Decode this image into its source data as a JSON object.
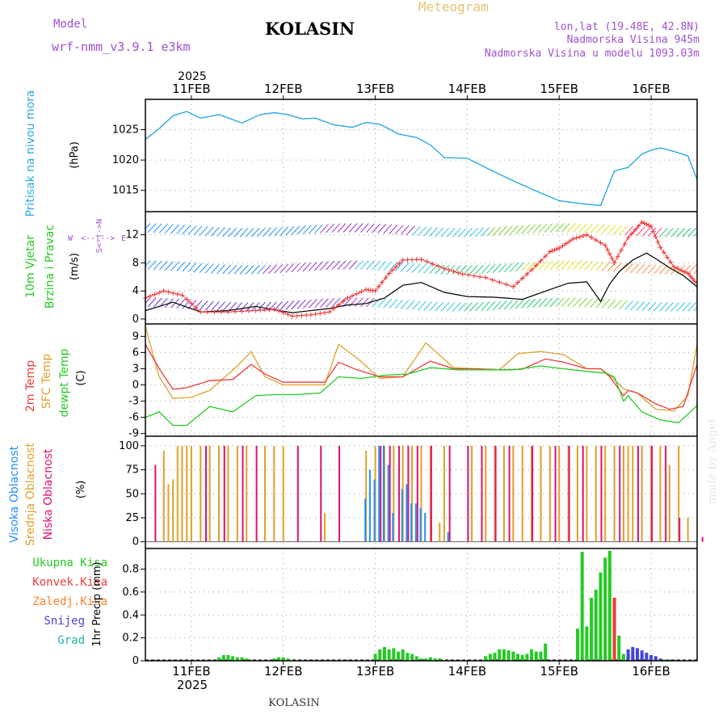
{
  "header": {
    "model_label": "Model",
    "model_name": "wrf-nmm_v3.9.1 e3km",
    "station": "KOLASIN",
    "meteogram_label": "Meteogram",
    "coords": "lon,lat (19.48E, 42.8N)",
    "elevation": "Nadmorska Visina 945m",
    "model_elevation": "Nadmorska Visina u modelu 1093.03m"
  },
  "footer": {
    "station": "KOLASIN",
    "watermark": "made by Angel"
  },
  "colors": {
    "pressure": "#29a9e0",
    "t2m": "#ee3b3b",
    "sfc": "#e0a02a",
    "dewpt": "#22cc22",
    "high_cloud": "#1e90ff",
    "mid_cloud": "#e0a02a",
    "low_cloud": "#e0106f",
    "precip_total": "#22cc22",
    "precip_conv": "#ee3b3b",
    "precip_frz": "#ff7f24",
    "snow": "#4444dd",
    "hail": "#20b2aa",
    "title_purple": "#a050d0",
    "meteogram_orange": "#e8c070"
  },
  "time_axis": {
    "year": "2025",
    "tick_labels": [
      "11FEB",
      "12FEB",
      "13FEB",
      "14FEB",
      "15FEB",
      "16FEB"
    ],
    "range_days": [
      -0.5,
      5.5
    ]
  },
  "chart_data": [
    {
      "type": "line",
      "panel": "pressure",
      "ylabel_outer": "Pritisak na nivou mora",
      "ylabel_unit": "(hPa)",
      "yticks": [
        1015,
        1020,
        1025
      ],
      "ylim": [
        1011.5,
        1030
      ],
      "series": [
        {
          "name": "Pritisak na nivou mora",
          "x": [
            -0.5,
            -0.35,
            -0.2,
            -0.05,
            0.1,
            0.3,
            0.55,
            0.75,
            0.9,
            1.05,
            1.2,
            1.35,
            1.55,
            1.75,
            1.9,
            2.05,
            2.25,
            2.45,
            2.6,
            2.75,
            3.0,
            3.25,
            3.5,
            3.75,
            4.0,
            4.25,
            4.45,
            4.6,
            4.75,
            4.9,
            5.0,
            5.1,
            5.25,
            5.4,
            5.5
          ],
          "values": [
            1023.4,
            1025.2,
            1027.3,
            1028.0,
            1026.9,
            1027.5,
            1026.1,
            1027.5,
            1027.8,
            1027.5,
            1026.8,
            1026.9,
            1025.8,
            1025.4,
            1026.2,
            1025.9,
            1024.3,
            1023.7,
            1022.5,
            1020.4,
            1020.3,
            1018.4,
            1016.6,
            1014.9,
            1013.3,
            1012.8,
            1012.5,
            1018.2,
            1018.8,
            1021.0,
            1021.6,
            1022.0,
            1021.4,
            1020.7,
            1016.8
          ]
        }
      ]
    },
    {
      "type": "line",
      "panel": "wind",
      "ylabel_outer_1": "10m Vjetar",
      "ylabel_outer_2": "Brzina i Pravac",
      "ylabel_unit": "(m/s)",
      "direction_key": [
        "W",
        "<--|-->",
        "E",
        "S<-|->N"
      ],
      "yticks": [
        0,
        4,
        8,
        12
      ],
      "ylim": [
        -0.7,
        15.3
      ],
      "series": [
        {
          "name": "gust",
          "x": [
            -0.5,
            -0.3,
            -0.1,
            0.1,
            0.4,
            0.7,
            0.9,
            1.1,
            1.3,
            1.5,
            1.7,
            1.9,
            2.0,
            2.15,
            2.3,
            2.5,
            2.75,
            2.95,
            3.2,
            3.5,
            3.7,
            3.9,
            4.0,
            4.15,
            4.3,
            4.5,
            4.6,
            4.75,
            4.9,
            5.0,
            5.1,
            5.25,
            5.4,
            5.5
          ],
          "values": [
            3.0,
            4.0,
            3.4,
            1.0,
            1.0,
            1.2,
            1.4,
            0.4,
            0.6,
            1.0,
            3.0,
            4.2,
            4.0,
            6.5,
            8.4,
            8.5,
            7.2,
            6.4,
            5.9,
            4.6,
            7.0,
            9.6,
            10.1,
            11.4,
            12.0,
            10.5,
            8.0,
            11.6,
            13.8,
            13.2,
            10.2,
            7.4,
            6.5,
            5.0
          ]
        },
        {
          "name": "mean",
          "x": [
            -0.5,
            -0.2,
            0.1,
            0.4,
            0.7,
            0.9,
            1.1,
            1.3,
            1.5,
            1.7,
            1.9,
            2.1,
            2.3,
            2.5,
            2.75,
            3.0,
            3.3,
            3.6,
            3.9,
            4.1,
            4.3,
            4.45,
            4.55,
            4.65,
            4.8,
            4.95,
            5.05,
            5.2,
            5.35,
            5.5
          ],
          "values": [
            1.2,
            2.4,
            1.0,
            1.2,
            1.8,
            1.3,
            0.9,
            1.2,
            1.5,
            2.0,
            2.2,
            3.0,
            4.8,
            5.2,
            3.8,
            3.2,
            3.1,
            2.8,
            4.2,
            5.1,
            5.3,
            2.5,
            5.0,
            6.7,
            8.4,
            9.4,
            8.6,
            7.3,
            6.2,
            4.6
          ]
        }
      ]
    },
    {
      "type": "line",
      "panel": "temperature",
      "ylabel_1": "2m Temp",
      "ylabel_2": "SFC Temp",
      "ylabel_3": "dewpt Temp",
      "ylabel_unit": "(C)",
      "yticks": [
        -9,
        -6,
        -3,
        0,
        3,
        6,
        9
      ],
      "ylim": [
        -9.5,
        11.3
      ],
      "series": [
        {
          "name": "2m Temp",
          "x": [
            -0.5,
            -0.35,
            -0.2,
            -0.05,
            0.2,
            0.45,
            0.65,
            0.8,
            1.0,
            1.25,
            1.45,
            1.6,
            1.8,
            2.05,
            2.3,
            2.6,
            2.85,
            3.1,
            3.35,
            3.6,
            3.85,
            4.05,
            4.3,
            4.45,
            4.55,
            4.7,
            4.75,
            4.85,
            5.05,
            5.2,
            5.35,
            5.5
          ],
          "values": [
            7.5,
            3.0,
            -0.8,
            -0.5,
            0.8,
            1.0,
            3.8,
            2.0,
            0.5,
            0.5,
            0.5,
            4.2,
            2.8,
            1.5,
            1.5,
            4.4,
            3.0,
            3.0,
            2.8,
            2.9,
            4.8,
            4.2,
            3.0,
            3.0,
            1.5,
            -2.0,
            -1.0,
            -1.5,
            -3.5,
            -4.5,
            -4.0,
            3.8
          ]
        },
        {
          "name": "SFC Temp",
          "x": [
            -0.5,
            -0.35,
            -0.2,
            0.0,
            0.2,
            0.5,
            0.65,
            0.8,
            1.0,
            1.25,
            1.45,
            1.6,
            1.8,
            2.05,
            2.3,
            2.55,
            2.85,
            3.1,
            3.35,
            3.55,
            3.8,
            4.05,
            4.3,
            4.45,
            4.55,
            4.7,
            4.75,
            4.85,
            5.05,
            5.25,
            5.4,
            5.5
          ],
          "values": [
            10.8,
            1.5,
            -2.5,
            -2.3,
            -1.0,
            3.5,
            6.2,
            1.5,
            0.0,
            0.0,
            0.0,
            7.5,
            5.0,
            1.2,
            1.5,
            7.8,
            3.2,
            3.0,
            2.8,
            5.8,
            6.2,
            5.6,
            3.0,
            3.0,
            1.8,
            -0.7,
            -1.0,
            -1.5,
            -4.5,
            -4.8,
            -2.0,
            7.6
          ]
        },
        {
          "name": "dewpt Temp",
          "x": [
            -0.5,
            -0.35,
            -0.2,
            -0.05,
            0.2,
            0.45,
            0.7,
            0.9,
            1.15,
            1.4,
            1.6,
            1.85,
            2.1,
            2.35,
            2.6,
            2.9,
            3.2,
            3.5,
            3.8,
            4.05,
            4.3,
            4.5,
            4.6,
            4.7,
            4.75,
            4.9,
            5.1,
            5.3,
            5.5
          ],
          "values": [
            -6.0,
            -5.0,
            -7.5,
            -7.5,
            -4.0,
            -5.0,
            -2.0,
            -1.8,
            -1.8,
            -1.5,
            1.5,
            1.2,
            1.8,
            2.0,
            3.2,
            2.8,
            2.8,
            2.8,
            3.5,
            3.0,
            2.5,
            2.2,
            1.5,
            -3.0,
            -2.0,
            -5.0,
            -6.5,
            -7.0,
            -3.8
          ]
        }
      ]
    },
    {
      "type": "bar",
      "panel": "cloud",
      "ylabel_1": "Visoka Oblacnost",
      "ylabel_2": "Srednja Oblacnost",
      "ylabel_3": "Niska Oblacnost",
      "ylabel_unit": "(%)",
      "yticks": [
        0,
        25,
        50,
        75,
        100
      ],
      "ylim": [
        -7,
        110
      ],
      "series": [
        {
          "name": "Visoka Oblacnost",
          "x": [
            1.9,
            1.95,
            2.0,
            2.05,
            2.1,
            2.15,
            2.2,
            2.3,
            2.35,
            2.4,
            2.45,
            2.5,
            2.55,
            2.8
          ],
          "values": [
            45,
            75,
            65,
            100,
            100,
            80,
            30,
            55,
            60,
            40,
            40,
            35,
            30,
            10
          ]
        },
        {
          "name": "Srednja Oblacnost",
          "x": [
            -0.3,
            -0.25,
            -0.2,
            -0.15,
            -0.1,
            -0.05,
            0.0,
            0.1,
            0.2,
            0.3,
            0.4,
            0.5,
            0.6,
            0.8,
            0.9,
            1.0,
            1.45,
            1.9,
            2.0,
            2.1,
            2.2,
            2.3,
            2.4,
            2.5,
            2.6,
            2.7,
            2.75,
            3.05,
            3.2,
            3.3,
            3.4,
            3.5,
            3.6,
            3.7,
            3.8,
            3.9,
            4.0,
            4.1,
            4.2,
            4.3,
            4.4,
            4.5,
            4.6,
            4.7,
            4.75,
            4.8,
            4.9,
            5.0,
            5.1,
            5.2,
            5.3,
            5.4
          ],
          "values": [
            95,
            60,
            65,
            100,
            100,
            100,
            100,
            100,
            100,
            100,
            100,
            100,
            100,
            100,
            100,
            100,
            30,
            95,
            100,
            100,
            100,
            100,
            100,
            100,
            100,
            20,
            100,
            100,
            100,
            100,
            100,
            100,
            100,
            100,
            100,
            100,
            100,
            100,
            100,
            100,
            100,
            100,
            100,
            100,
            100,
            100,
            100,
            100,
            100,
            80,
            100,
            25
          ]
        },
        {
          "name": "Niska Oblacnost",
          "x": [
            -0.4,
            0.15,
            0.35,
            0.55,
            0.7,
            1.15,
            1.4,
            1.6,
            2.05,
            2.15,
            2.25,
            2.35,
            2.45,
            2.6,
            2.8,
            3.0,
            3.15,
            3.3,
            3.45,
            3.7,
            3.95,
            4.1,
            4.25,
            4.45,
            4.65,
            4.85,
            5.0,
            5.15,
            5.3,
            5.55
          ],
          "values": [
            80,
            100,
            100,
            100,
            100,
            100,
            100,
            100,
            100,
            100,
            100,
            100,
            100,
            100,
            100,
            100,
            100,
            100,
            100,
            100,
            100,
            100,
            100,
            100,
            100,
            100,
            100,
            100,
            25,
            5
          ]
        }
      ]
    },
    {
      "type": "bar",
      "panel": "precip",
      "ylabel_1": "Ukupna Kisa",
      "ylabel_2": "Konvek.Kisa",
      "ylabel_3": "Zaledj.Kisa",
      "ylabel_4": "Snijeg",
      "ylabel_5": "Grad",
      "ylabel_unit": "1hr Precip (mm)",
      "yticks": [
        0,
        0.2,
        0.4,
        0.6,
        0.8
      ],
      "ylim": [
        0,
        0.98
      ],
      "series": [
        {
          "name": "Ukupna Kisa",
          "x": [
            0.3,
            0.35,
            0.4,
            0.45,
            0.5,
            0.55,
            0.6,
            0.9,
            0.95,
            1.0,
            1.05,
            2.0,
            2.05,
            2.1,
            2.15,
            2.2,
            2.25,
            2.3,
            2.35,
            2.4,
            2.45,
            2.5,
            2.55,
            2.6,
            2.65,
            2.7,
            3.2,
            3.25,
            3.3,
            3.35,
            3.4,
            3.45,
            3.5,
            3.55,
            3.6,
            3.65,
            3.7,
            3.75,
            3.8,
            3.85,
            4.2,
            4.25,
            4.3,
            4.35,
            4.4,
            4.45,
            4.5,
            4.55,
            4.6,
            4.65,
            4.7,
            4.75,
            4.8,
            4.85,
            4.9,
            4.95,
            5.0,
            5.05,
            5.1,
            5.15,
            5.2
          ],
          "values": [
            0.03,
            0.05,
            0.05,
            0.04,
            0.03,
            0.03,
            0.02,
            0.02,
            0.03,
            0.03,
            0.02,
            0.06,
            0.1,
            0.12,
            0.1,
            0.11,
            0.08,
            0.1,
            0.07,
            0.06,
            0.04,
            0.02,
            0.02,
            0.03,
            0.02,
            0.02,
            0.04,
            0.06,
            0.07,
            0.1,
            0.1,
            0.09,
            0.08,
            0.06,
            0.05,
            0.06,
            0.1,
            0.08,
            0.08,
            0.15,
            0.28,
            0.95,
            0.3,
            0.55,
            0.62,
            0.77,
            0.9,
            0.96,
            0.55,
            0.22,
            0.06,
            0.05,
            0.04,
            0.03,
            0.03,
            0.02,
            0.02,
            0.02,
            0.01,
            0.01,
            0.01
          ]
        },
        {
          "name": "Konvek.Kisa",
          "x": [
            4.6
          ],
          "values": [
            0.55
          ]
        },
        {
          "name": "Snijeg",
          "x": [
            4.75,
            4.8,
            4.85,
            4.9,
            4.95,
            5.0,
            5.05,
            5.1
          ],
          "values": [
            0.1,
            0.12,
            0.11,
            0.09,
            0.07,
            0.05,
            0.04,
            0.02
          ]
        }
      ]
    }
  ]
}
